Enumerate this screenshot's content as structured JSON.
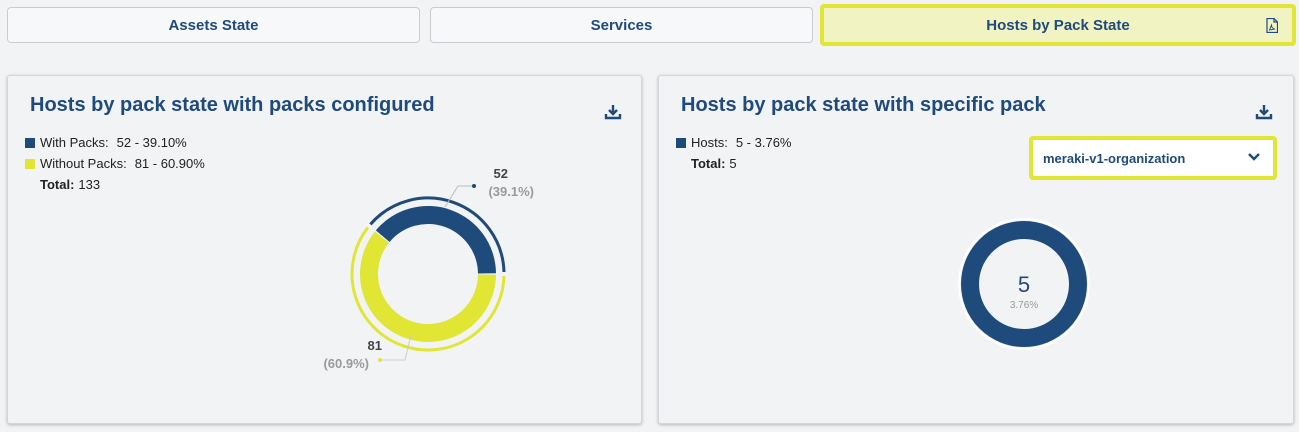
{
  "tabs": [
    {
      "label": "Assets State",
      "active": false
    },
    {
      "label": "Services",
      "active": false
    },
    {
      "label": "Hosts by Pack State",
      "active": true,
      "icon": "pdf-icon"
    }
  ],
  "colors": {
    "primary": "#1f4a7c",
    "accent": "#e1e534",
    "muted": "#9a9a9a"
  },
  "panel_left": {
    "title": "Hosts by pack state with packs configured",
    "legend": [
      {
        "label": "With Packs:",
        "value": "52 - 39.10%",
        "color": "#1f4a7c"
      },
      {
        "label": "Without Packs:",
        "value": "81 - 60.90%",
        "color": "#e1e534"
      }
    ],
    "total_label": "Total:",
    "total_value": "133",
    "callout_1_value": "52",
    "callout_1_pct": "(39.1%)",
    "callout_2_value": "81",
    "callout_2_pct": "(60.9%)",
    "download_icon": "download-icon"
  },
  "panel_right": {
    "title": "Hosts by pack state with specific pack",
    "legend": [
      {
        "label": "Hosts:",
        "value": "5 - 3.76%",
        "color": "#1f4a7c"
      }
    ],
    "total_label": "Total:",
    "total_value": "5",
    "dropdown_value": "meraki-v1-organization",
    "center_value": "5",
    "center_pct": "3.76%",
    "download_icon": "download-icon"
  },
  "chart_data": [
    {
      "type": "pie",
      "categories": [
        "With Packs",
        "Without Packs"
      ],
      "values": [
        52,
        81
      ],
      "percentages": [
        39.1,
        60.9
      ],
      "title": "Hosts by pack state with packs configured"
    },
    {
      "type": "pie",
      "categories": [
        "Hosts"
      ],
      "values": [
        5
      ],
      "percentages": [
        3.76
      ],
      "title": "Hosts by pack state with specific pack"
    }
  ]
}
